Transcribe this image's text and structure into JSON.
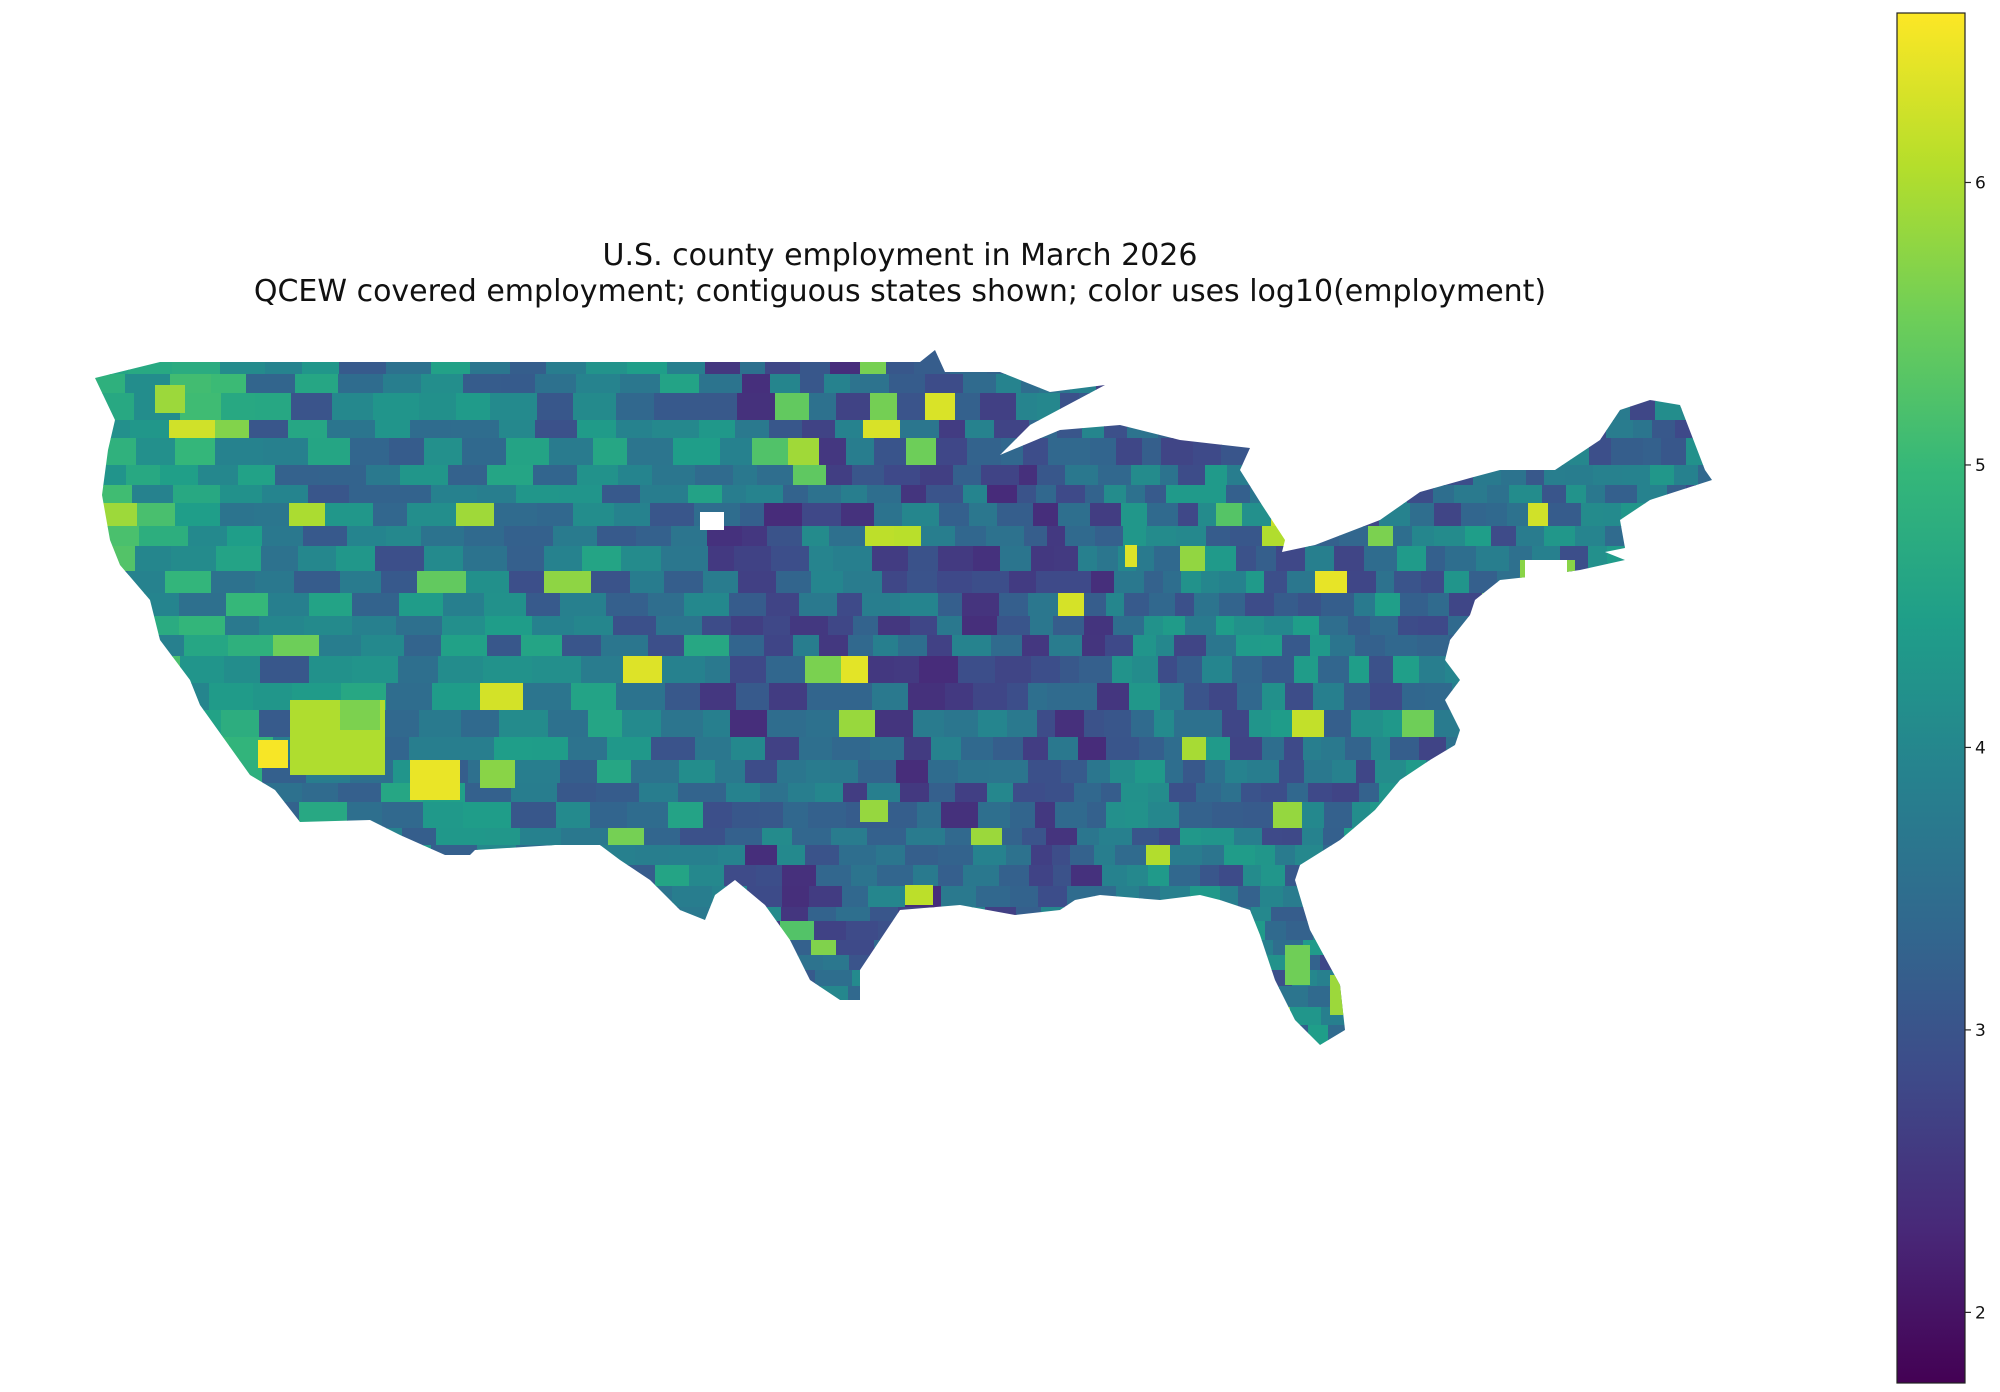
{
  "title": "U.S. county employment in March 2026",
  "subtitle": "QCEW covered employment; contiguous states shown; color uses log10(employment)",
  "colorbar": {
    "colormap": "viridis",
    "ticks": [
      "2",
      "3",
      "4",
      "5",
      "6"
    ],
    "tick_values": [
      2,
      3,
      4,
      5,
      6
    ],
    "range": [
      1.75,
      6.6
    ]
  },
  "colors": {
    "viridis": [
      "#440154",
      "#482878",
      "#3e4a89",
      "#31688e",
      "#26828e",
      "#1f9e89",
      "#35b779",
      "#6ece58",
      "#b5de2b",
      "#fde725"
    ],
    "missing": "#ffffff",
    "background": "#ffffff"
  }
}
